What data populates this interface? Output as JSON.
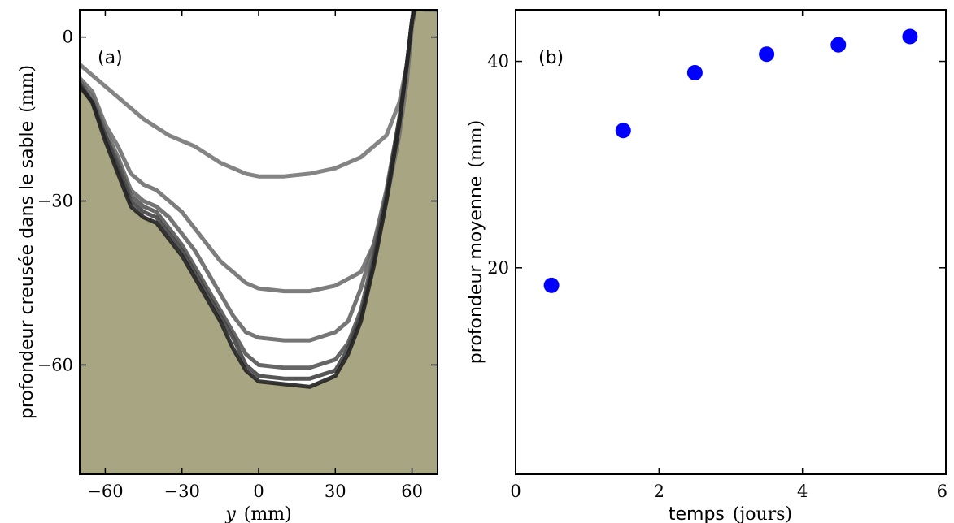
{
  "chart_data": [
    {
      "panel_label": "(a)",
      "type": "line",
      "ylabel": {
        "text": "profondeur creusée dans le sable",
        "unit": "(mm)"
      },
      "xlabel": {
        "var": "y",
        "unit": "(mm)"
      },
      "xlim": [
        -70,
        70
      ],
      "ylim": [
        -80,
        5
      ],
      "xticks": [
        -60,
        -30,
        0,
        30,
        60
      ],
      "yticks": [
        0,
        -30,
        -60
      ],
      "xtick_labels": [
        "−60",
        "−30",
        "0",
        "30",
        "60"
      ],
      "ytick_labels": [
        "0",
        "−30",
        "−60"
      ],
      "fill_color": "#a8a682",
      "series": [
        {
          "color": "#777777",
          "x": [
            -70,
            -65,
            -55,
            -45,
            -35,
            -25,
            -15,
            -5,
            0,
            10,
            20,
            30,
            40,
            50,
            55,
            58,
            60,
            61,
            62,
            63,
            65,
            70
          ],
          "y": [
            -5,
            -7,
            -11,
            -15,
            -18,
            -20,
            -23,
            -25,
            -25.5,
            -25.5,
            -25,
            -24,
            -22,
            -18,
            -12,
            -5,
            3,
            7,
            6,
            5.5,
            5,
            5
          ]
        },
        {
          "color": "#6f6f6f",
          "x": [
            -70,
            -65,
            -60,
            -55,
            -50,
            -45,
            -40,
            -35,
            -30,
            -25,
            -20,
            -15,
            -10,
            -5,
            0,
            10,
            20,
            30,
            40,
            45,
            50,
            55,
            58,
            60,
            62,
            65,
            70
          ],
          "y": [
            -7.5,
            -10,
            -16,
            -20,
            -25,
            -27,
            -28,
            -30,
            -32,
            -35,
            -38,
            -41,
            -43,
            -45,
            -46,
            -46.5,
            -46.5,
            -45.5,
            -43,
            -38,
            -30,
            -18,
            -8,
            2,
            7,
            5.5,
            5
          ]
        },
        {
          "color": "#666666",
          "x": [
            -70,
            -65,
            -60,
            -55,
            -50,
            -45,
            -40,
            -35,
            -30,
            -25,
            -20,
            -15,
            -10,
            -5,
            0,
            10,
            20,
            30,
            35,
            40,
            45,
            50,
            55,
            58,
            60,
            62,
            65,
            70
          ],
          "y": [
            -8,
            -11,
            -17,
            -22,
            -28,
            -30,
            -31,
            -33,
            -36,
            -39,
            -43,
            -47,
            -51,
            -54,
            -55,
            -55.5,
            -55.5,
            -54,
            -52,
            -46,
            -38,
            -28,
            -15,
            -5,
            3,
            7,
            5.5,
            5
          ]
        },
        {
          "color": "#555555",
          "x": [
            -70,
            -65,
            -60,
            -55,
            -50,
            -45,
            -40,
            -35,
            -30,
            -25,
            -20,
            -15,
            -10,
            -5,
            0,
            10,
            20,
            30,
            35,
            40,
            45,
            50,
            55,
            58,
            60,
            62,
            65,
            70
          ],
          "y": [
            -8.5,
            -12,
            -18,
            -23,
            -29,
            -31,
            -32,
            -35,
            -38,
            -42,
            -46,
            -50,
            -54,
            -58,
            -60,
            -60.5,
            -60.5,
            -59,
            -56,
            -50,
            -40,
            -29,
            -15,
            -5,
            3,
            7,
            5.5,
            5
          ]
        },
        {
          "color": "#444444",
          "x": [
            -70,
            -65,
            -60,
            -55,
            -50,
            -45,
            -40,
            -35,
            -30,
            -25,
            -20,
            -15,
            -10,
            -5,
            0,
            10,
            20,
            30,
            35,
            40,
            45,
            50,
            55,
            58,
            60,
            62,
            65,
            70
          ],
          "y": [
            -8.5,
            -12,
            -18,
            -24,
            -30,
            -32,
            -33,
            -36,
            -39,
            -43,
            -47,
            -51,
            -55,
            -60,
            -62,
            -62.5,
            -62.5,
            -61,
            -57,
            -51,
            -41,
            -29,
            -15,
            -5,
            3,
            7.5,
            5.5,
            5
          ]
        },
        {
          "color": "#222222",
          "x": [
            -70,
            -65,
            -60,
            -55,
            -50,
            -45,
            -40,
            -35,
            -30,
            -25,
            -20,
            -15,
            -10,
            -5,
            0,
            10,
            20,
            30,
            35,
            40,
            45,
            50,
            55,
            58,
            60,
            62,
            65,
            70
          ],
          "y": [
            -9,
            -12,
            -19,
            -25,
            -31,
            -33,
            -34,
            -37,
            -40,
            -44,
            -48,
            -52,
            -57,
            -61,
            -63,
            -63.5,
            -64,
            -62,
            -58,
            -52,
            -42,
            -30,
            -16,
            -5,
            3,
            7.5,
            5.5,
            5
          ]
        }
      ]
    },
    {
      "panel_label": "(b)",
      "type": "scatter",
      "ylabel": {
        "text": "profondeur moyenne",
        "unit": "(mm)"
      },
      "xlabel": {
        "text": "temps",
        "unit": "(jours)"
      },
      "xlim": [
        0,
        6
      ],
      "ylim": [
        0,
        45
      ],
      "xticks": [
        0,
        2,
        4,
        6
      ],
      "yticks": [
        20,
        40
      ],
      "xtick_labels": [
        "0",
        "2",
        "4",
        "6"
      ],
      "ytick_labels": [
        "20",
        "40"
      ],
      "marker_color": "#0000ff",
      "x": [
        0.5,
        1.5,
        2.5,
        3.5,
        4.5,
        5.5
      ],
      "y": [
        18.3,
        33.3,
        38.9,
        40.7,
        41.6,
        42.4
      ]
    }
  ]
}
